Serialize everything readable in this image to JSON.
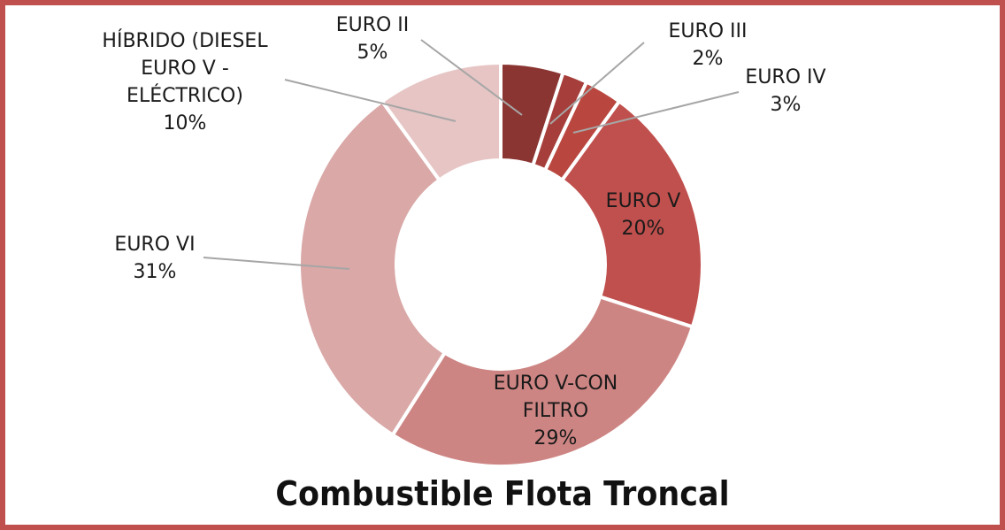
{
  "chart_data": {
    "type": "pie",
    "variant": "donut",
    "title": "Combustible Flota Troncal",
    "slices": [
      {
        "name": "EURO II",
        "label_lines": [
          "EURO II"
        ],
        "value": 5,
        "pct_label": "5%",
        "color": "#8b3532"
      },
      {
        "name": "EURO III",
        "label_lines": [
          "EURO III"
        ],
        "value": 2,
        "pct_label": "2%",
        "color": "#a63f3b"
      },
      {
        "name": "EURO IV",
        "label_lines": [
          "EURO IV"
        ],
        "value": 3,
        "pct_label": "3%",
        "color": "#b9473f"
      },
      {
        "name": "EURO V",
        "label_lines": [
          "EURO V"
        ],
        "value": 20,
        "pct_label": "20%",
        "color": "#c0504d"
      },
      {
        "name": "EURO V-CON FILTRO",
        "label_lines": [
          "EURO V-CON",
          "FILTRO"
        ],
        "value": 29,
        "pct_label": "29%",
        "color": "#cd8583"
      },
      {
        "name": "EURO VI",
        "label_lines": [
          "EURO VI"
        ],
        "value": 31,
        "pct_label": "31%",
        "color": "#d9a8a7"
      },
      {
        "name": "HÍBRIDO (DIESEL EURO V - ELÉCTRICO)",
        "label_lines": [
          "HÍBRIDO (DIESEL",
          "EURO V -",
          "ELÉCTRICO)"
        ],
        "value": 10,
        "pct_label": "10%",
        "color": "#e6c5c4"
      }
    ],
    "legend": "none"
  },
  "colors": {
    "frame_border": "#c0504d",
    "leader_line": "#a6a6a6"
  }
}
